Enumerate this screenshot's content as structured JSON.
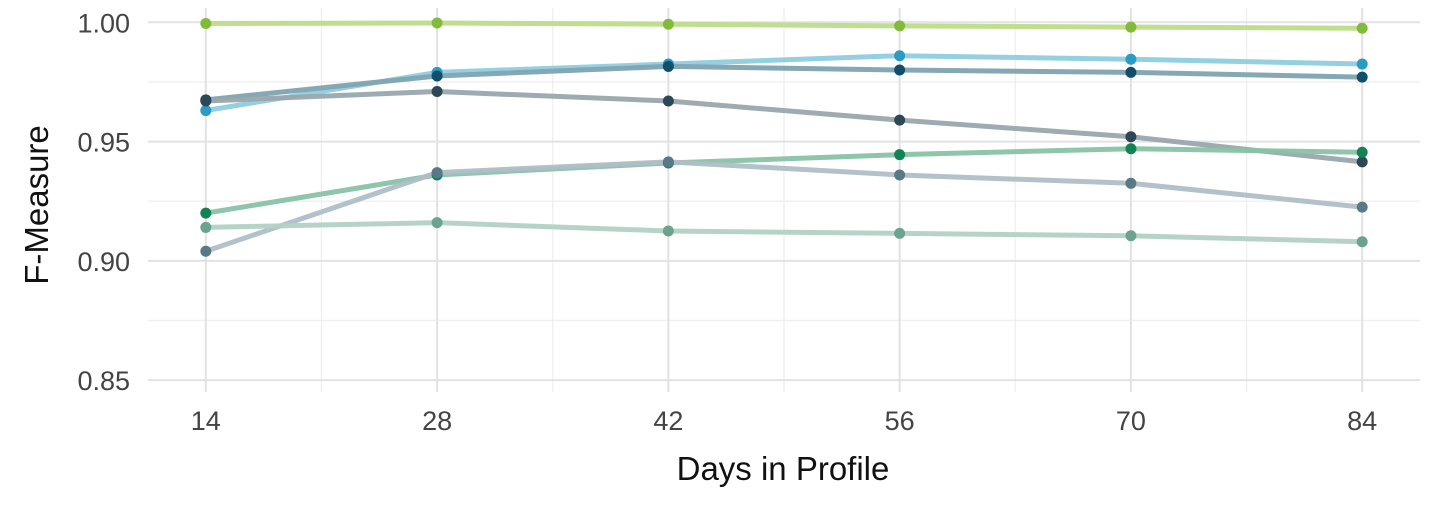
{
  "chart_data": {
    "type": "line",
    "xlabel": "Days in Profile",
    "ylabel": "F-Measure",
    "x": [
      14,
      28,
      42,
      56,
      70,
      84
    ],
    "x_ticks": [
      "14",
      "28",
      "42",
      "56",
      "70",
      "84"
    ],
    "y_ticks": [
      "0.85",
      "0.90",
      "0.95",
      "1.00"
    ],
    "xlim": [
      10.5,
      87.5
    ],
    "ylim": [
      0.845,
      1.006
    ],
    "grid": true,
    "legend": "none",
    "series": [
      {
        "values": [
          0.9995,
          0.9997,
          0.9992,
          0.9985,
          0.998,
          0.9975
        ],
        "line_color": "#bcdc88",
        "point_color": "#80bb3a"
      },
      {
        "values": [
          0.963,
          0.979,
          0.9825,
          0.986,
          0.9845,
          0.9825
        ],
        "line_color": "#8ecde0",
        "point_color": "#2a9cc4"
      },
      {
        "values": [
          0.9675,
          0.9775,
          0.9815,
          0.98,
          0.979,
          0.977
        ],
        "line_color": "#7fa3b1",
        "point_color": "#104e6c"
      },
      {
        "values": [
          0.967,
          0.971,
          0.967,
          0.959,
          0.952,
          0.9415
        ],
        "line_color": "#99a7ad",
        "point_color": "#2d4757"
      },
      {
        "values": [
          0.92,
          0.936,
          0.941,
          0.9445,
          0.947,
          0.9455
        ],
        "line_color": "#88c2a6",
        "point_color": "#138356"
      },
      {
        "values": [
          0.904,
          0.937,
          0.9415,
          0.936,
          0.9325,
          0.9225
        ],
        "line_color": "#afbec7",
        "point_color": "#597987"
      },
      {
        "values": [
          0.914,
          0.916,
          0.9125,
          0.9115,
          0.9105,
          0.908
        ],
        "line_color": "#b1d2c4",
        "point_color": "#6aa38e"
      }
    ]
  }
}
